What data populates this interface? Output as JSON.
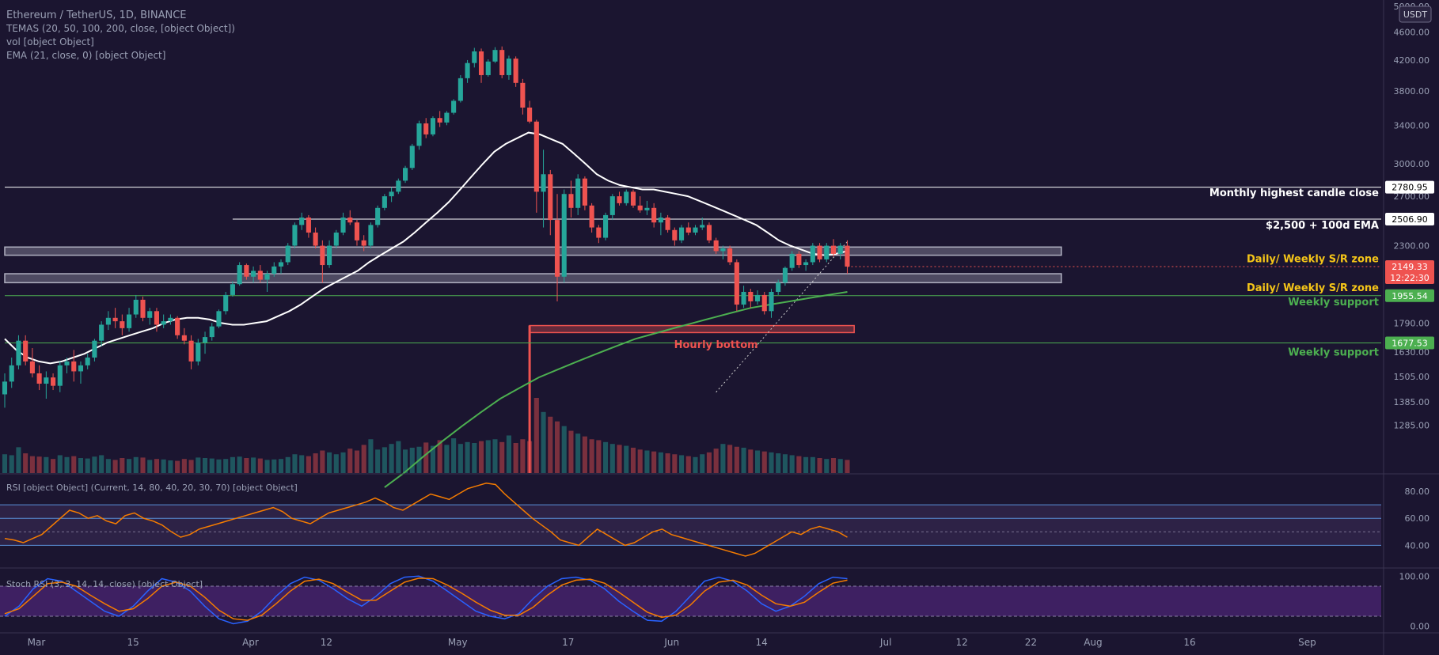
{
  "chart_data": {
    "type": "candlestick",
    "title": "Ethereum / TetherUS, 1D, BINANCE",
    "quote_currency": "USDT",
    "indicators_legend": [
      "TEMAS (20, 50, 100, 200, close, [object Object])",
      "vol [object Object]",
      "EMA (21, close, 0) [object Object]"
    ],
    "price_axis": {
      "min": 1100,
      "max": 5000,
      "ticks": [
        "5000.00",
        "4600.00",
        "4200.00",
        "3800.00",
        "3400.00",
        "3000.00",
        "2700.00",
        "2300.00",
        "1790.00",
        "1630.00",
        "1505.00",
        "1385.00",
        "1285.00"
      ],
      "tick_values": [
        5000,
        4600,
        4200,
        3800,
        3400,
        3000,
        2700,
        2300,
        1790,
        1630,
        1505,
        1385,
        1285
      ]
    },
    "time_axis": {
      "labels": [
        "Mar",
        "15",
        "Apr",
        "12",
        "May",
        "17",
        "Jun",
        "14",
        "Jul",
        "12",
        "22",
        "Aug",
        "16",
        "Sep"
      ],
      "label_day_index": [
        0,
        14,
        31,
        42,
        61,
        77,
        92,
        105,
        123,
        134,
        144,
        153,
        167,
        184
      ]
    },
    "price_tags": [
      {
        "id": "monthly-high",
        "value": 2780.95,
        "text": "2780.95",
        "color": "#ffffff",
        "text_color": "#000000"
      },
      {
        "id": "ema-2500",
        "value": 2506.9,
        "text": "2506.90",
        "color": "#ffffff",
        "text_color": "#000000"
      },
      {
        "id": "last-price",
        "value": 2149.33,
        "text": "2149.33",
        "countdown": "12:22:30",
        "color": "#ef5350",
        "text_color": "#ffffff"
      },
      {
        "id": "weekly-support-1",
        "value": 1955.54,
        "text": "1955.54",
        "color": "#4caf50",
        "text_color": "#ffffff"
      },
      {
        "id": "weekly-support-2",
        "value": 1677.53,
        "text": "1677.53",
        "color": "#4caf50",
        "text_color": "#ffffff"
      }
    ],
    "horizontal_levels": [
      {
        "value": 2780.95,
        "color": "#ffffff",
        "start_day": 0
      },
      {
        "value": 2506.9,
        "color": "#ffffff",
        "start_day": 33
      },
      {
        "value": 1955.54,
        "color": "#4caf50",
        "start_day": 0
      },
      {
        "value": 1677.53,
        "color": "#4caf50",
        "start_day": 0
      }
    ],
    "zones": [
      {
        "low": 2230,
        "high": 2290,
        "start_day": 0,
        "end_day": 153,
        "color": "#b0b0c0"
      },
      {
        "low": 2040,
        "high": 2100,
        "start_day": 0,
        "end_day": 153,
        "color": "#b0b0c0"
      },
      {
        "low": 1735,
        "high": 1775,
        "start_day": 76,
        "end_day": 123,
        "color": "#ef5350",
        "stem_bottom": 1100
      }
    ],
    "annotations": [
      {
        "text": "Monthly highest candle close",
        "price": 2700,
        "color": "#ffffff"
      },
      {
        "text": "$2,500 + 100d EMA",
        "price": 2430,
        "color": "#ffffff"
      },
      {
        "text": "Daily/ Weekly S/R zone",
        "price": 2180,
        "color": "#f5c518"
      },
      {
        "text": "Daily/ Weekly S/R zone",
        "price": 1985,
        "color": "#f5c518"
      },
      {
        "text": "Weekly support",
        "price": 1895,
        "color": "#4caf50"
      },
      {
        "text": "Hourly bottom",
        "price": 1650,
        "color": "#ef5350",
        "anchor": "middle",
        "day": 103
      },
      {
        "text": "Weekly support",
        "price": 1610,
        "color": "#4caf50"
      }
    ],
    "trendline": {
      "from": {
        "day": 103,
        "price": 1430
      },
      "to": {
        "day": 122,
        "price": 2330
      },
      "color": "#cccccc"
    },
    "candles_ohlc": [
      [
        1420,
        1520,
        1360,
        1480
      ],
      [
        1480,
        1600,
        1450,
        1560
      ],
      [
        1560,
        1720,
        1540,
        1690
      ],
      [
        1690,
        1720,
        1560,
        1580
      ],
      [
        1580,
        1650,
        1500,
        1520
      ],
      [
        1520,
        1560,
        1440,
        1470
      ],
      [
        1470,
        1530,
        1400,
        1500
      ],
      [
        1500,
        1520,
        1440,
        1460
      ],
      [
        1460,
        1580,
        1430,
        1560
      ],
      [
        1560,
        1600,
        1520,
        1580
      ],
      [
        1580,
        1640,
        1480,
        1530
      ],
      [
        1530,
        1580,
        1470,
        1560
      ],
      [
        1560,
        1620,
        1540,
        1600
      ],
      [
        1600,
        1700,
        1580,
        1690
      ],
      [
        1690,
        1800,
        1660,
        1780
      ],
      [
        1780,
        1860,
        1750,
        1820
      ],
      [
        1820,
        1880,
        1760,
        1800
      ],
      [
        1800,
        1840,
        1720,
        1760
      ],
      [
        1760,
        1880,
        1740,
        1840
      ],
      [
        1840,
        1960,
        1820,
        1930
      ],
      [
        1930,
        1950,
        1800,
        1820
      ],
      [
        1820,
        1880,
        1780,
        1860
      ],
      [
        1860,
        1880,
        1740,
        1780
      ],
      [
        1780,
        1840,
        1760,
        1800
      ],
      [
        1800,
        1840,
        1780,
        1820
      ],
      [
        1820,
        1830,
        1700,
        1720
      ],
      [
        1720,
        1760,
        1670,
        1690
      ],
      [
        1690,
        1720,
        1540,
        1580
      ],
      [
        1580,
        1700,
        1560,
        1680
      ],
      [
        1680,
        1740,
        1620,
        1710
      ],
      [
        1710,
        1790,
        1690,
        1770
      ],
      [
        1770,
        1870,
        1760,
        1860
      ],
      [
        1860,
        1980,
        1840,
        1960
      ],
      [
        1960,
        2050,
        1950,
        2030
      ],
      [
        2030,
        2180,
        2020,
        2160
      ],
      [
        2160,
        2170,
        2060,
        2080
      ],
      [
        2080,
        2150,
        2040,
        2120
      ],
      [
        2120,
        2160,
        2040,
        2060
      ],
      [
        2060,
        2120,
        1980,
        2100
      ],
      [
        2100,
        2180,
        2080,
        2150
      ],
      [
        2150,
        2200,
        2100,
        2180
      ],
      [
        2180,
        2320,
        2160,
        2300
      ],
      [
        2300,
        2480,
        2280,
        2460
      ],
      [
        2460,
        2560,
        2420,
        2520
      ],
      [
        2520,
        2540,
        2360,
        2400
      ],
      [
        2400,
        2440,
        2280,
        2300
      ],
      [
        2300,
        2340,
        2040,
        2160
      ],
      [
        2160,
        2340,
        2140,
        2300
      ],
      [
        2300,
        2420,
        2280,
        2400
      ],
      [
        2400,
        2560,
        2380,
        2520
      ],
      [
        2520,
        2580,
        2460,
        2480
      ],
      [
        2480,
        2500,
        2300,
        2340
      ],
      [
        2340,
        2380,
        2260,
        2300
      ],
      [
        2300,
        2480,
        2280,
        2460
      ],
      [
        2460,
        2620,
        2440,
        2600
      ],
      [
        2600,
        2720,
        2580,
        2700
      ],
      [
        2700,
        2780,
        2650,
        2740
      ],
      [
        2740,
        2860,
        2720,
        2840
      ],
      [
        2840,
        2980,
        2820,
        2960
      ],
      [
        2960,
        3200,
        2940,
        3180
      ],
      [
        3180,
        3450,
        3140,
        3420
      ],
      [
        3420,
        3480,
        3260,
        3300
      ],
      [
        3300,
        3500,
        3280,
        3480
      ],
      [
        3480,
        3560,
        3380,
        3430
      ],
      [
        3430,
        3560,
        3400,
        3540
      ],
      [
        3540,
        3700,
        3520,
        3680
      ],
      [
        3680,
        4000,
        3660,
        3960
      ],
      [
        3960,
        4200,
        3900,
        4160
      ],
      [
        4160,
        4370,
        4100,
        4320
      ],
      [
        4320,
        4360,
        3900,
        4000
      ],
      [
        4000,
        4210,
        3980,
        4180
      ],
      [
        4180,
        4380,
        4160,
        4340
      ],
      [
        4340,
        4390,
        3960,
        4000
      ],
      [
        4000,
        4260,
        3940,
        4220
      ],
      [
        4220,
        4250,
        3850,
        3900
      ],
      [
        3900,
        3950,
        3520,
        3600
      ],
      [
        3600,
        3680,
        3420,
        3440
      ],
      [
        3440,
        3460,
        2560,
        2740
      ],
      [
        2740,
        3140,
        2440,
        2900
      ],
      [
        2900,
        2940,
        2380,
        2500
      ],
      [
        2500,
        2720,
        1920,
        2080
      ],
      [
        2080,
        2760,
        2040,
        2720
      ],
      [
        2720,
        2840,
        2520,
        2600
      ],
      [
        2600,
        2900,
        2540,
        2860
      ],
      [
        2860,
        2880,
        2580,
        2620
      ],
      [
        2620,
        2640,
        2400,
        2440
      ],
      [
        2440,
        2460,
        2320,
        2360
      ],
      [
        2360,
        2560,
        2340,
        2540
      ],
      [
        2540,
        2720,
        2500,
        2700
      ],
      [
        2700,
        2740,
        2620,
        2640
      ],
      [
        2640,
        2760,
        2620,
        2740
      ],
      [
        2740,
        2760,
        2600,
        2620
      ],
      [
        2620,
        2700,
        2560,
        2580
      ],
      [
        2580,
        2660,
        2540,
        2600
      ],
      [
        2600,
        2640,
        2440,
        2480
      ],
      [
        2480,
        2560,
        2380,
        2520
      ],
      [
        2520,
        2540,
        2400,
        2420
      ],
      [
        2420,
        2440,
        2300,
        2340
      ],
      [
        2340,
        2460,
        2320,
        2440
      ],
      [
        2440,
        2480,
        2380,
        2400
      ],
      [
        2400,
        2460,
        2380,
        2440
      ],
      [
        2440,
        2520,
        2420,
        2460
      ],
      [
        2460,
        2480,
        2320,
        2340
      ],
      [
        2340,
        2360,
        2240,
        2260
      ],
      [
        2260,
        2300,
        2200,
        2280
      ],
      [
        2280,
        2300,
        2160,
        2180
      ],
      [
        2180,
        2200,
        1860,
        1900
      ],
      [
        1900,
        2020,
        1880,
        1980
      ],
      [
        1980,
        2000,
        1880,
        1920
      ],
      [
        1920,
        1990,
        1900,
        1960
      ],
      [
        1960,
        1980,
        1840,
        1860
      ],
      [
        1860,
        2000,
        1820,
        1980
      ],
      [
        1980,
        2060,
        1960,
        2040
      ],
      [
        2040,
        2150,
        2020,
        2140
      ],
      [
        2140,
        2260,
        2120,
        2240
      ],
      [
        2240,
        2260,
        2140,
        2160
      ],
      [
        2160,
        2200,
        2120,
        2180
      ],
      [
        2180,
        2320,
        2160,
        2300
      ],
      [
        2300,
        2320,
        2180,
        2200
      ],
      [
        2200,
        2320,
        2180,
        2300
      ],
      [
        2300,
        2350,
        2220,
        2240
      ],
      [
        2240,
        2320,
        2200,
        2300
      ],
      [
        2300,
        2340,
        2100,
        2149.33
      ]
    ],
    "volume_axis_note": "volume shown as relative bars at bottom of price pane",
    "volume": [
      40,
      38,
      55,
      42,
      36,
      35,
      34,
      30,
      38,
      34,
      36,
      32,
      31,
      35,
      38,
      30,
      28,
      32,
      30,
      34,
      33,
      28,
      30,
      29,
      27,
      26,
      30,
      28,
      33,
      32,
      31,
      29,
      30,
      34,
      35,
      32,
      33,
      31,
      28,
      29,
      30,
      34,
      40,
      38,
      36,
      42,
      48,
      44,
      40,
      44,
      52,
      48,
      60,
      72,
      50,
      55,
      62,
      68,
      50,
      54,
      56,
      65,
      58,
      70,
      60,
      74,
      62,
      66,
      64,
      68,
      70,
      72,
      66,
      80,
      64,
      72,
      68,
      160,
      130,
      120,
      110,
      100,
      90,
      84,
      78,
      72,
      70,
      66,
      62,
      60,
      58,
      54,
      50,
      48,
      46,
      44,
      42,
      40,
      38,
      36,
      34,
      40,
      44,
      52,
      62,
      60,
      56,
      54,
      50,
      48,
      46,
      44,
      42,
      40,
      38,
      36,
      34,
      34,
      32,
      30,
      32,
      30,
      28
    ],
    "overlay_series": [
      {
        "name": "EMA 21",
        "color": "#ffffff",
        "values": [
          1700,
          1640,
          1600,
          1580,
          1570,
          1580,
          1600,
          1620,
          1650,
          1680,
          1700,
          1720,
          1740,
          1760,
          1790,
          1810,
          1820,
          1820,
          1810,
          1790,
          1780,
          1780,
          1790,
          1800,
          1830,
          1860,
          1900,
          1950,
          2000,
          2040,
          2080,
          2120,
          2180,
          2230,
          2280,
          2330,
          2400,
          2480,
          2560,
          2650,
          2760,
          2880,
          3000,
          3120,
          3200,
          3260,
          3320,
          3300,
          3250,
          3200,
          3100,
          3000,
          2900,
          2840,
          2800,
          2780,
          2760,
          2760,
          2740,
          2720,
          2700,
          2660,
          2620,
          2580,
          2540,
          2500,
          2460,
          2400,
          2340,
          2300,
          2270,
          2240,
          2230,
          2240,
          2260
        ]
      },
      {
        "name": "EMA 200",
        "color": "#4caf50",
        "values": [
          1050,
          1100,
          1160,
          1220,
          1280,
          1340,
          1400,
          1450,
          1500,
          1540,
          1580,
          1620,
          1660,
          1700,
          1730,
          1760,
          1790,
          1820,
          1850,
          1880,
          1900,
          1920,
          1940,
          1960,
          1980
        ]
      }
    ],
    "rsi": {
      "label": "RSI [object Object] (Current, 14, 80, 40, 20, 30, 70) [object Object]",
      "axis_ticks": [
        "80.00",
        "60.00",
        "40.00"
      ],
      "axis_values": [
        80,
        60,
        40
      ],
      "levels": [
        70,
        60,
        50,
        40
      ],
      "range": [
        25,
        90
      ],
      "values": [
        45,
        44,
        42,
        45,
        48,
        54,
        60,
        66,
        64,
        60,
        62,
        58,
        56,
        62,
        64,
        60,
        58,
        55,
        50,
        46,
        48,
        52,
        54,
        56,
        58,
        60,
        62,
        64,
        66,
        68,
        65,
        60,
        58,
        56,
        60,
        64,
        66,
        68,
        70,
        72,
        75,
        72,
        68,
        66,
        70,
        74,
        78,
        76,
        74,
        78,
        82,
        84,
        86,
        85,
        78,
        72,
        66,
        60,
        55,
        50,
        44,
        42,
        40,
        46,
        52,
        48,
        44,
        40,
        42,
        46,
        50,
        52,
        48,
        46,
        44,
        42,
        40,
        38,
        36,
        34,
        32,
        34,
        38,
        42,
        46,
        50,
        48,
        52,
        54,
        52,
        50,
        46
      ]
    },
    "stoch": {
      "label": "Stoch RSI (3, 3, 14, 14, close) [object Object]",
      "axis_ticks": [
        "100.00",
        "0.00"
      ],
      "axis_values": [
        100,
        0
      ],
      "range": [
        -10,
        110
      ],
      "band": [
        20,
        80
      ],
      "k": [
        20,
        40,
        75,
        95,
        90,
        70,
        50,
        30,
        20,
        40,
        70,
        95,
        88,
        70,
        40,
        15,
        5,
        10,
        30,
        60,
        85,
        98,
        92,
        75,
        55,
        40,
        60,
        85,
        98,
        100,
        90,
        70,
        50,
        30,
        20,
        15,
        25,
        55,
        80,
        95,
        98,
        92,
        75,
        50,
        30,
        12,
        10,
        30,
        60,
        90,
        98,
        90,
        70,
        45,
        30,
        40,
        60,
        85,
        98,
        95
      ],
      "d": [
        25,
        35,
        60,
        85,
        88,
        80,
        62,
        45,
        30,
        35,
        55,
        80,
        88,
        80,
        58,
        32,
        15,
        12,
        22,
        45,
        70,
        90,
        94,
        85,
        68,
        52,
        52,
        70,
        88,
        96,
        95,
        82,
        66,
        48,
        32,
        22,
        22,
        38,
        62,
        82,
        92,
        94,
        86,
        68,
        48,
        28,
        18,
        22,
        42,
        70,
        88,
        92,
        82,
        62,
        45,
        40,
        48,
        68,
        86,
        92
      ]
    }
  }
}
